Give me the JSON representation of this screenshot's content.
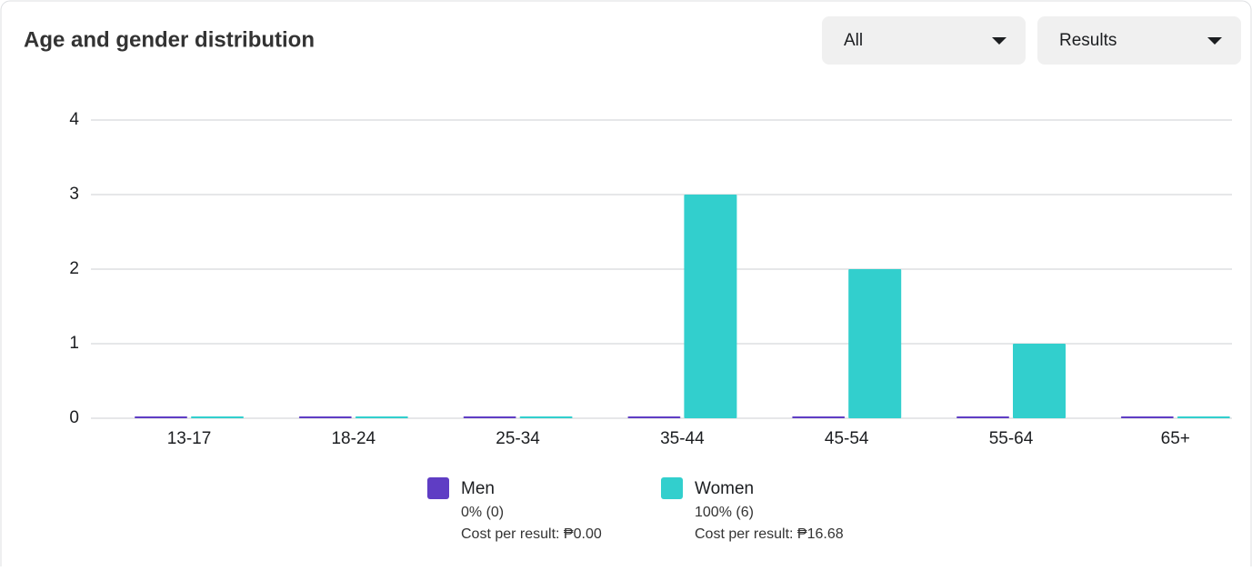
{
  "chart_data": {
    "type": "bar",
    "title": "Age and gender distribution",
    "categories": [
      "13-17",
      "18-24",
      "25-34",
      "35-44",
      "45-54",
      "55-64",
      "65+"
    ],
    "series": [
      {
        "name": "Men",
        "color": "#5f3dc4",
        "values": [
          0,
          0,
          0,
          0,
          0,
          0,
          0
        ],
        "share_label": "0% (0)",
        "cost_label": "Cost per result: ₱0.00"
      },
      {
        "name": "Women",
        "color": "#32cfcd",
        "values": [
          0,
          0,
          0,
          3,
          2,
          1,
          0
        ],
        "share_label": "100% (6)",
        "cost_label": "Cost per result: ₱16.68"
      }
    ],
    "ylim": [
      0,
      4
    ],
    "yticks": [
      0,
      1,
      2,
      3,
      4
    ],
    "grid": true
  },
  "controls": {
    "filter": "All",
    "metric": "Results"
  }
}
